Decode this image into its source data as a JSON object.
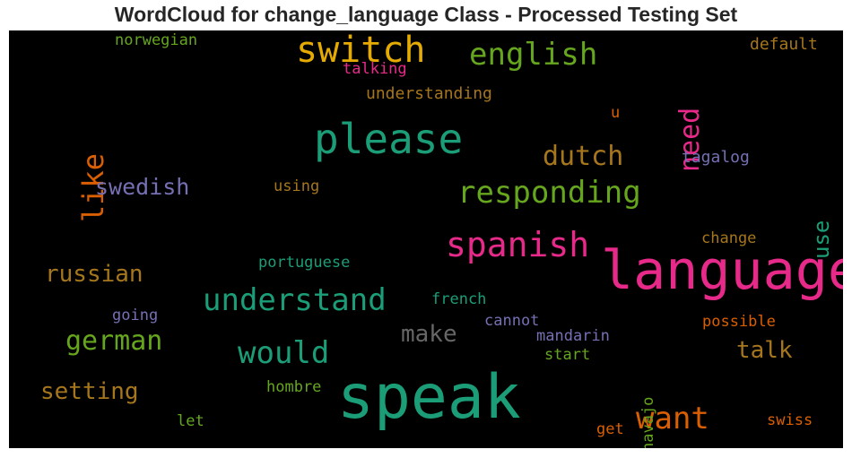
{
  "title": "WordCloud for change_language Class - Processed Testing Set",
  "palette": {
    "teal": "#1b9e77",
    "orange": "#d95f02",
    "purple": "#7570b3",
    "pink": "#e7298a",
    "green": "#66a61e",
    "gold": "#e6ab02",
    "brown": "#a6761d",
    "gray": "#666666"
  },
  "words": [
    {
      "text": "speak",
      "color": "#1b9e77"
    },
    {
      "text": "language",
      "color": "#e7298a"
    },
    {
      "text": "please",
      "color": "#1b9e77"
    },
    {
      "text": "switch",
      "color": "#e6ab02"
    },
    {
      "text": "responding",
      "color": "#66a61e"
    },
    {
      "text": "understand",
      "color": "#1b9e77"
    },
    {
      "text": "spanish",
      "color": "#e7298a"
    },
    {
      "text": "english",
      "color": "#66a61e"
    },
    {
      "text": "would",
      "color": "#1b9e77"
    },
    {
      "text": "want",
      "color": "#d95f02"
    },
    {
      "text": "dutch",
      "color": "#a6761d"
    },
    {
      "text": "german",
      "color": "#66a61e"
    },
    {
      "text": "like",
      "color": "#d95f02"
    },
    {
      "text": "need",
      "color": "#e7298a"
    },
    {
      "text": "swedish",
      "color": "#7570b3"
    },
    {
      "text": "russian",
      "color": "#a6761d"
    },
    {
      "text": "make",
      "color": "#666666"
    },
    {
      "text": "talk",
      "color": "#a6761d"
    },
    {
      "text": "setting",
      "color": "#a6761d"
    },
    {
      "text": "use",
      "color": "#1b9e77"
    },
    {
      "text": "norwegian",
      "color": "#66a61e"
    },
    {
      "text": "talking",
      "color": "#e7298a"
    },
    {
      "text": "understanding",
      "color": "#a6761d"
    },
    {
      "text": "default",
      "color": "#a6761d"
    },
    {
      "text": "u",
      "color": "#d95f02"
    },
    {
      "text": "tagalog",
      "color": "#7570b3"
    },
    {
      "text": "using",
      "color": "#a6761d"
    },
    {
      "text": "change",
      "color": "#a6761d"
    },
    {
      "text": "portuguese",
      "color": "#1b9e77"
    },
    {
      "text": "french",
      "color": "#1b9e77"
    },
    {
      "text": "going",
      "color": "#7570b3"
    },
    {
      "text": "cannot",
      "color": "#7570b3"
    },
    {
      "text": "possible",
      "color": "#d95f02"
    },
    {
      "text": "mandarin",
      "color": "#7570b3"
    },
    {
      "text": "start",
      "color": "#66a61e"
    },
    {
      "text": "navajo",
      "color": "#66a61e"
    },
    {
      "text": "hombre",
      "color": "#66a61e"
    },
    {
      "text": "let",
      "color": "#66a61e"
    },
    {
      "text": "get",
      "color": "#d95f02"
    },
    {
      "text": "swiss",
      "color": "#d95f02"
    }
  ]
}
